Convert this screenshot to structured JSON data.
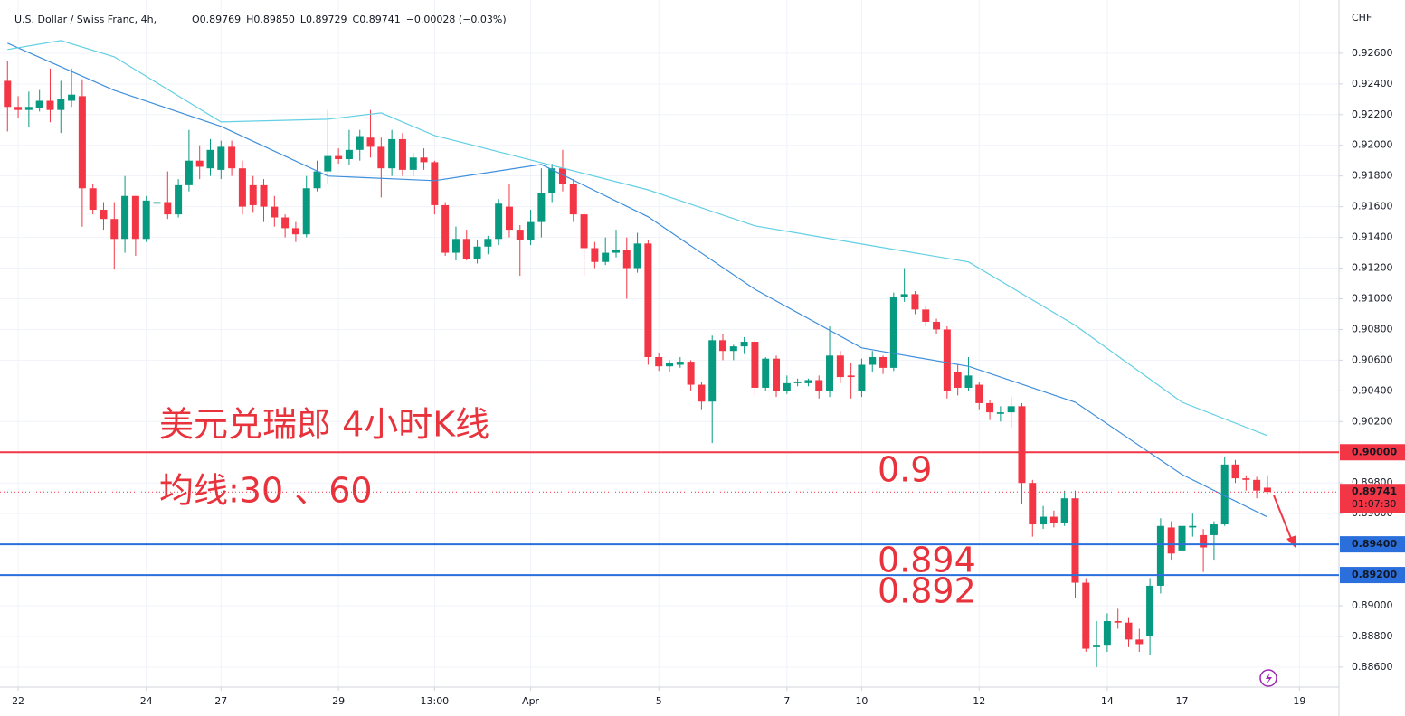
{
  "chart_data": {
    "type": "candlestick",
    "symbol": "U.S. Dollar / Swiss Franc, 4h,",
    "ohlc_text": [
      "O0.89769",
      "H0.89850",
      "L0.89729",
      "C0.89741",
      "−0.00028 (−0.03%)"
    ],
    "currency": "CHF",
    "title": "美元兑瑞郎 4小时K线",
    "subtitle": "均线:30 、60",
    "up_color": "#089981",
    "down_color": "#f23645",
    "open": [
      0.9242,
      0.9225,
      0.9223,
      0.9224,
      0.9229,
      0.9223,
      0.9229,
      0.9232,
      0.9172,
      0.9158,
      0.9152,
      0.9139,
      0.9167,
      0.9139,
      0.9162,
      0.9163,
      0.9155,
      0.9174,
      0.919,
      0.9185,
      0.9184,
      0.9199,
      0.9185,
      0.9174,
      0.9174,
      0.916,
      0.9153,
      0.9146,
      0.9142,
      0.9172,
      0.9183,
      0.9193,
      0.9191,
      0.9197,
      0.9205,
      0.9199,
      0.9185,
      0.9204,
      0.9184,
      0.9192,
      0.9189,
      0.9161,
      0.913,
      0.9139,
      0.9126,
      0.9134,
      0.9139,
      0.916,
      0.9145,
      0.9138,
      0.915,
      0.9169,
      0.9185,
      0.9175,
      0.9155,
      0.9133,
      0.9124,
      0.913,
      0.9132,
      0.912,
      0.9136,
      0.9062,
      0.9056,
      0.9057,
      0.9059,
      0.9044,
      0.9033,
      0.9073,
      0.9066,
      0.9069,
      0.9072,
      0.9042,
      0.9061,
      0.904,
      0.9045,
      0.9045,
      0.9047,
      0.904,
      0.9063,
      0.905,
      0.904,
      0.9057,
      0.9062,
      0.9055,
      0.9101,
      0.9103,
      0.9093,
      0.9085,
      0.908,
      0.9052,
      0.9042,
      0.9044,
      0.9032,
      0.9025,
      0.9026,
      0.903,
      0.898,
      0.8953,
      0.8958,
      0.8954,
      0.897,
      0.8915,
      0.8873,
      0.8874,
      0.889,
      0.8889,
      0.8878,
      0.888,
      0.8913,
      0.8951,
      0.8936,
      0.8951,
      0.8946,
      0.8946,
      0.8953,
      0.8992,
      0.8983,
      0.8982,
      0.89769
    ],
    "high": [
      0.9255,
      0.9232,
      0.9235,
      0.9236,
      0.925,
      0.9242,
      0.925,
      0.9243,
      0.9175,
      0.9163,
      0.9163,
      0.918,
      0.9167,
      0.9167,
      0.9172,
      0.9183,
      0.9178,
      0.921,
      0.92,
      0.9204,
      0.9203,
      0.9203,
      0.919,
      0.918,
      0.9178,
      0.9167,
      0.9155,
      0.915,
      0.918,
      0.919,
      0.9223,
      0.9198,
      0.921,
      0.921,
      0.9223,
      0.9205,
      0.921,
      0.9208,
      0.9195,
      0.9198,
      0.919,
      0.9163,
      0.9147,
      0.9145,
      0.9138,
      0.9141,
      0.9165,
      0.9175,
      0.9148,
      0.9158,
      0.9185,
      0.9188,
      0.9197,
      0.9178,
      0.9157,
      0.9137,
      0.914,
      0.9145,
      0.914,
      0.9143,
      0.9138,
      0.9065,
      0.906,
      0.9062,
      0.906,
      0.9046,
      0.9076,
      0.9077,
      0.907,
      0.9075,
      0.9074,
      0.9062,
      0.9063,
      0.905,
      0.9048,
      0.9048,
      0.905,
      0.9082,
      0.9066,
      0.9058,
      0.9061,
      0.9066,
      0.9063,
      0.9104,
      0.912,
      0.9105,
      0.9095,
      0.9087,
      0.9082,
      0.9057,
      0.9062,
      0.9046,
      0.9034,
      0.903,
      0.9036,
      0.9032,
      0.8982,
      0.8965,
      0.8962,
      0.8975,
      0.8975,
      0.8918,
      0.889,
      0.8895,
      0.8898,
      0.8892,
      0.8885,
      0.8918,
      0.8957,
      0.8955,
      0.8955,
      0.896,
      0.895,
      0.8955,
      0.8997,
      0.8995,
      0.8985,
      0.8984,
      0.8985
    ],
    "low": [
      0.9209,
      0.9218,
      0.9212,
      0.9222,
      0.9215,
      0.9208,
      0.9225,
      0.9147,
      0.9155,
      0.9145,
      0.9119,
      0.913,
      0.9128,
      0.9137,
      0.9155,
      0.9152,
      0.9153,
      0.917,
      0.9178,
      0.918,
      0.9178,
      0.918,
      0.9155,
      0.9156,
      0.915,
      0.9147,
      0.914,
      0.9137,
      0.914,
      0.917,
      0.9175,
      0.9188,
      0.9187,
      0.919,
      0.9192,
      0.9166,
      0.918,
      0.918,
      0.918,
      0.9184,
      0.9155,
      0.9128,
      0.9125,
      0.9125,
      0.9123,
      0.9129,
      0.9135,
      0.914,
      0.9115,
      0.9135,
      0.914,
      0.9163,
      0.917,
      0.915,
      0.9115,
      0.912,
      0.9122,
      0.9127,
      0.91,
      0.9117,
      0.9057,
      0.9053,
      0.9052,
      0.9055,
      0.904,
      0.9028,
      0.9006,
      0.906,
      0.906,
      0.9064,
      0.9037,
      0.904,
      0.9036,
      0.9038,
      0.9043,
      0.9043,
      0.9035,
      0.9036,
      0.9045,
      0.9035,
      0.9036,
      0.9052,
      0.9051,
      0.9053,
      0.9098,
      0.909,
      0.9082,
      0.9077,
      0.9035,
      0.9037,
      0.904,
      0.9028,
      0.9021,
      0.902,
      0.9016,
      0.8966,
      0.8945,
      0.895,
      0.8951,
      0.8952,
      0.8905,
      0.887,
      0.886,
      0.887,
      0.8885,
      0.8873,
      0.887,
      0.8868,
      0.8908,
      0.893,
      0.8934,
      0.8945,
      0.8922,
      0.893,
      0.8952,
      0.898,
      0.8975,
      0.897,
      0.89729
    ],
    "close": [
      0.9225,
      0.9223,
      0.9225,
      0.9229,
      0.9223,
      0.923,
      0.9233,
      0.9172,
      0.9158,
      0.9152,
      0.9139,
      0.9167,
      0.9139,
      0.9164,
      0.9163,
      0.9155,
      0.9174,
      0.919,
      0.9186,
      0.9197,
      0.9199,
      0.9185,
      0.916,
      0.9161,
      0.916,
      0.9153,
      0.9146,
      0.9142,
      0.9172,
      0.9183,
      0.9193,
      0.9191,
      0.9197,
      0.9206,
      0.9199,
      0.9185,
      0.9204,
      0.9184,
      0.9192,
      0.9189,
      0.9161,
      0.913,
      0.9139,
      0.9126,
      0.9134,
      0.9139,
      0.9162,
      0.9145,
      0.9138,
      0.915,
      0.9169,
      0.9185,
      0.9175,
      0.9155,
      0.9133,
      0.9124,
      0.913,
      0.9132,
      0.912,
      0.9136,
      0.9062,
      0.9056,
      0.9058,
      0.9059,
      0.9044,
      0.9033,
      0.9073,
      0.9066,
      0.9069,
      0.9072,
      0.9042,
      0.9061,
      0.904,
      0.9045,
      0.9046,
      0.9047,
      0.904,
      0.9063,
      0.9049,
      0.9049,
      0.9057,
      0.9062,
      0.9055,
      0.9101,
      0.9103,
      0.9093,
      0.9085,
      0.908,
      0.904,
      0.9042,
      0.905,
      0.9032,
      0.9026,
      0.9026,
      0.903,
      0.898,
      0.8953,
      0.8958,
      0.8954,
      0.897,
      0.8915,
      0.8872,
      0.8874,
      0.889,
      0.8889,
      0.8878,
      0.8875,
      0.8913,
      0.8952,
      0.8934,
      0.8952,
      0.8952,
      0.8938,
      0.8953,
      0.8992,
      0.8983,
      0.8982,
      0.8975,
      0.89741
    ],
    "series": [
      {
        "color": "#3f8fdc",
        "x": [
          0,
          10,
          20,
          30,
          40,
          50,
          60,
          70,
          80,
          90,
          100,
          110,
          118
        ],
        "values": [
          0.92665,
          0.92358,
          0.92123,
          0.918,
          0.9177,
          0.91875,
          0.91534,
          0.91062,
          0.9068,
          0.9056,
          0.90326,
          0.89855,
          0.89578
        ]
      },
      {
        "color": "#62cfe3",
        "x": [
          0,
          5,
          10,
          20,
          30,
          35,
          40,
          50,
          60,
          70,
          80,
          90,
          100,
          110,
          118
        ],
        "values": [
          0.92624,
          0.92682,
          0.92576,
          0.92152,
          0.9217,
          0.92211,
          0.92064,
          0.91887,
          0.9171,
          0.91475,
          0.91357,
          0.9124,
          0.90827,
          0.90326,
          0.90108
        ]
      }
    ],
    "levels": [
      {
        "value": 0.9,
        "label": "0.90000",
        "annotation": "0.9",
        "color": "#f23645"
      },
      {
        "value": 0.894,
        "label": "0.89400",
        "annotation": "0.894",
        "color": "#2a6fdb"
      },
      {
        "value": 0.892,
        "label": "0.89200",
        "annotation": "0.892",
        "color": "#2a6fdb"
      }
    ],
    "last_price": {
      "value": 0.89741,
      "label": "0.89741",
      "countdown": "01:07:30",
      "color": "#f23645"
    },
    "xlim": [
      -0.7,
      124.7
    ],
    "xticks": [
      {
        "value": 1,
        "label": "22"
      },
      {
        "value": 13,
        "label": "24"
      },
      {
        "value": 20,
        "label": "27"
      },
      {
        "value": 31,
        "label": "29"
      },
      {
        "value": 40,
        "label": "13:00"
      },
      {
        "value": 49,
        "label": "Apr"
      },
      {
        "value": 61,
        "label": "5"
      },
      {
        "value": 73,
        "label": "7"
      },
      {
        "value": 80,
        "label": "10"
      },
      {
        "value": 91,
        "label": "12"
      },
      {
        "value": 103,
        "label": "14"
      },
      {
        "value": 110,
        "label": "17"
      },
      {
        "value": 121,
        "label": "19"
      }
    ],
    "ylim": [
      0.8847,
      0.9277
    ],
    "yticks": [
      {
        "value": 0.886,
        "label": "0.88600"
      },
      {
        "value": 0.888,
        "label": "0.88800"
      },
      {
        "value": 0.89,
        "label": "0.89000"
      },
      {
        "value": 0.896,
        "label": "0.89600"
      },
      {
        "value": 0.898,
        "label": "0.89800"
      },
      {
        "value": 0.902,
        "label": "0.90200"
      },
      {
        "value": 0.904,
        "label": "0.90400"
      },
      {
        "value": 0.906,
        "label": "0.90600"
      },
      {
        "value": 0.908,
        "label": "0.90800"
      },
      {
        "value": 0.91,
        "label": "0.91000"
      },
      {
        "value": 0.912,
        "label": "0.91200"
      },
      {
        "value": 0.914,
        "label": "0.91400"
      },
      {
        "value": 0.916,
        "label": "0.91600"
      },
      {
        "value": 0.918,
        "label": "0.91800"
      },
      {
        "value": 0.92,
        "label": "0.92000"
      },
      {
        "value": 0.922,
        "label": "0.92200"
      },
      {
        "value": 0.924,
        "label": "0.92400"
      },
      {
        "value": 0.926,
        "label": "0.92600"
      }
    ],
    "grid": true
  }
}
